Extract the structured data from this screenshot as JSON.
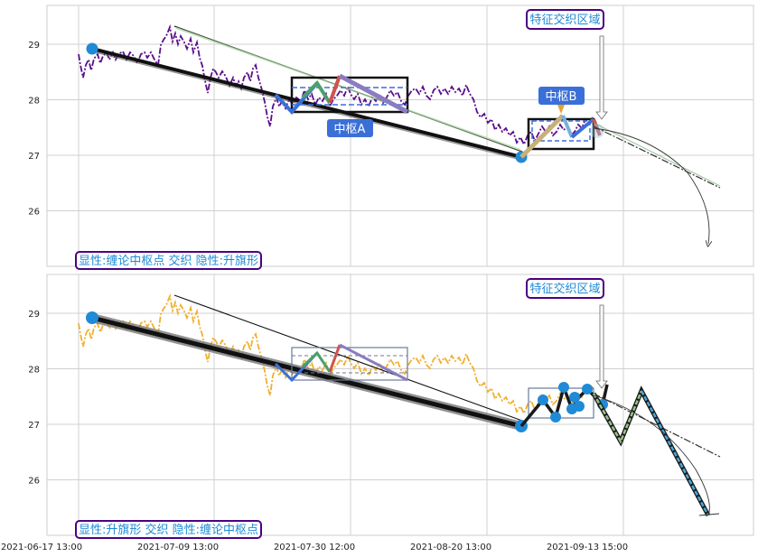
{
  "chart_data": [
    {
      "type": "line",
      "panel": "top",
      "ylim": [
        25.0,
        29.7
      ],
      "yticks": [
        "26",
        "27",
        "28",
        "29"
      ],
      "grid": true,
      "price_color": "#5a0d8c",
      "price_style": "dash-dot",
      "label": "显性:缠论中枢点 交织 隐性:升旗形",
      "region_label": "特征交织区域",
      "zhongshu": [
        {
          "label": "中枢A",
          "price_low": 27.85,
          "price_high": 28.45
        },
        {
          "label": "中枢B",
          "price_low": 27.15,
          "price_high": 27.7
        }
      ]
    },
    {
      "type": "line",
      "panel": "bottom",
      "ylim": [
        25.0,
        29.7
      ],
      "yticks": [
        "26",
        "27",
        "28",
        "29"
      ],
      "grid": true,
      "price_color": "#f0b030",
      "price_style": "dash-dot",
      "label": "显性:升旗形 交织 隐性:缠论中枢点",
      "region_label": "特征交织区域"
    }
  ],
  "x_axis": {
    "type": "date",
    "tick_labels": [
      "2021-06-17 13:00",
      "2021-07-09 13:00",
      "2021-07-30 12:00",
      "2021-08-20 13:00",
      "2021-09-13 15:00"
    ]
  },
  "colors": {
    "accent_blue": "#1f8ad6",
    "label_border": "#4b0082",
    "label_text": "#1f8ad6",
    "zhongshu_fill": "#3b6fd8",
    "trend_line": "#111111"
  }
}
